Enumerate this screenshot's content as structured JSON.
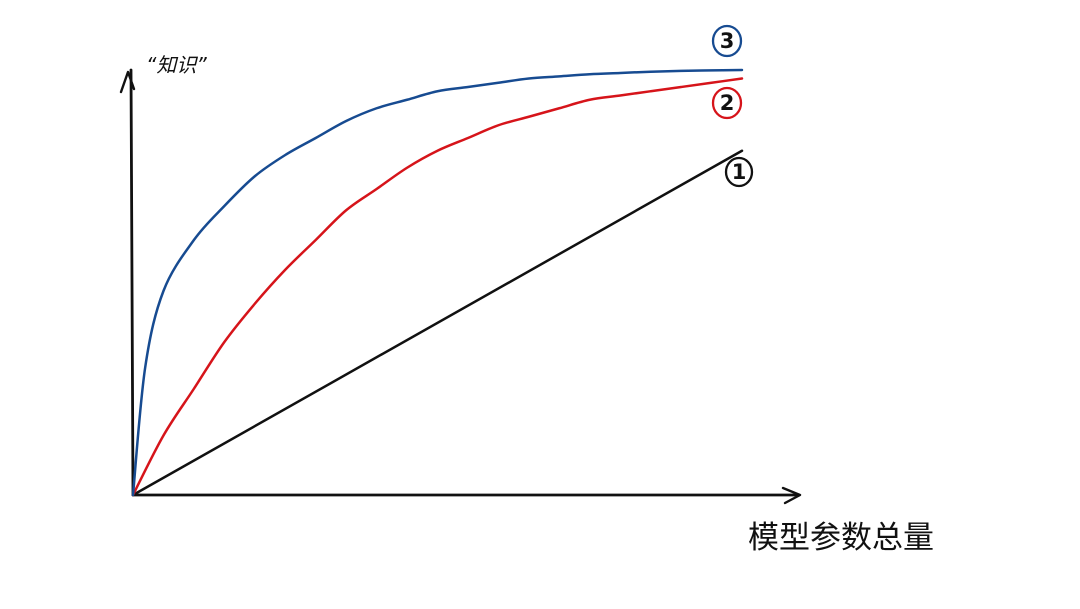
{
  "chart_data": {
    "type": "line",
    "title": "",
    "xlabel": "模型参数总量",
    "ylabel": "“知识”",
    "xlim": [
      0,
      100
    ],
    "ylim": [
      0,
      100
    ],
    "grid": false,
    "axis_ticks": false,
    "series": [
      {
        "name": "①",
        "color": "#111111",
        "x": [
          0,
          100
        ],
        "y": [
          0,
          81
        ]
      },
      {
        "name": "②",
        "color": "#d6141a",
        "x": [
          0,
          5,
          10,
          15,
          20,
          25,
          30,
          35,
          40,
          45,
          50,
          55,
          60,
          65,
          70,
          75,
          80,
          85,
          90,
          95,
          100
        ],
        "y": [
          0,
          14,
          25,
          36,
          45,
          53,
          60,
          67,
          72,
          77,
          81,
          84,
          87,
          89,
          91,
          93,
          94,
          95,
          96,
          97,
          98
        ]
      },
      {
        "name": "③",
        "color": "#174b91",
        "x": [
          0,
          2,
          5,
          10,
          15,
          20,
          25,
          30,
          35,
          40,
          45,
          50,
          55,
          60,
          65,
          70,
          75,
          80,
          85,
          90,
          95,
          100
        ],
        "y": [
          0,
          30,
          48,
          60,
          68,
          75,
          80,
          84,
          88,
          91,
          93,
          95,
          96,
          97,
          98,
          98.5,
          99,
          99.3,
          99.6,
          99.8,
          99.9,
          100
        ]
      }
    ],
    "annotations": [
      {
        "series": "①",
        "label": "1",
        "color": "#111111"
      },
      {
        "series": "②",
        "label": "2",
        "color": "#d6141a"
      },
      {
        "series": "③",
        "label": "3",
        "color": "#174b91"
      }
    ]
  }
}
